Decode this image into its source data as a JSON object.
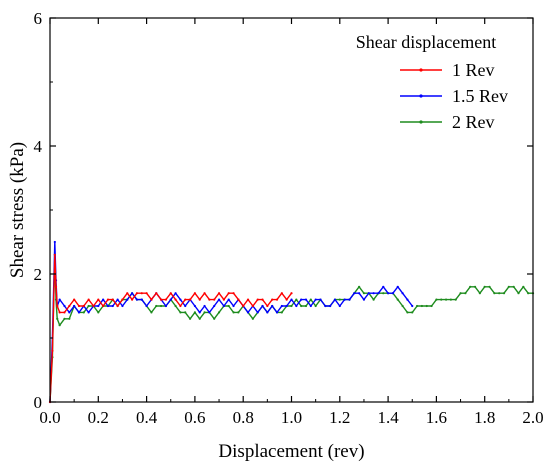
{
  "chart_data": {
    "type": "line",
    "title": "",
    "xlabel": "Displacement (rev)",
    "ylabel": "Shear stress (kPa)",
    "xlim": [
      0,
      2.0
    ],
    "ylim": [
      0,
      6
    ],
    "xticks": [
      "0.0",
      "0.2",
      "0.4",
      "0.6",
      "0.8",
      "1.0",
      "1.2",
      "1.4",
      "1.6",
      "1.8",
      "2.0"
    ],
    "yticks": [
      "0",
      "2",
      "4",
      "6"
    ],
    "grid": false,
    "legend": {
      "title": "Shear displacement",
      "position": "top-right"
    },
    "series": [
      {
        "name": "1 Rev",
        "color": "#ff0000",
        "x": [
          0.0,
          0.01,
          0.02,
          0.025,
          0.03,
          0.04,
          0.06,
          0.08,
          0.1,
          0.12,
          0.14,
          0.16,
          0.18,
          0.2,
          0.22,
          0.24,
          0.26,
          0.28,
          0.3,
          0.32,
          0.34,
          0.36,
          0.38,
          0.4,
          0.42,
          0.44,
          0.46,
          0.48,
          0.5,
          0.52,
          0.54,
          0.56,
          0.58,
          0.6,
          0.62,
          0.64,
          0.66,
          0.68,
          0.7,
          0.72,
          0.74,
          0.76,
          0.78,
          0.8,
          0.82,
          0.84,
          0.86,
          0.88,
          0.9,
          0.92,
          0.94,
          0.96,
          0.98,
          1.0
        ],
        "y": [
          0.0,
          0.8,
          2.3,
          1.8,
          1.5,
          1.4,
          1.4,
          1.5,
          1.6,
          1.5,
          1.5,
          1.6,
          1.5,
          1.6,
          1.5,
          1.6,
          1.6,
          1.5,
          1.6,
          1.7,
          1.6,
          1.7,
          1.7,
          1.7,
          1.6,
          1.7,
          1.6,
          1.6,
          1.7,
          1.6,
          1.5,
          1.6,
          1.6,
          1.7,
          1.6,
          1.7,
          1.6,
          1.6,
          1.7,
          1.6,
          1.7,
          1.7,
          1.6,
          1.5,
          1.6,
          1.5,
          1.6,
          1.6,
          1.5,
          1.6,
          1.6,
          1.7,
          1.6,
          1.7
        ]
      },
      {
        "name": "1.5 Rev",
        "color": "#0000ff",
        "x": [
          0.0,
          0.01,
          0.02,
          0.025,
          0.03,
          0.04,
          0.06,
          0.08,
          0.1,
          0.12,
          0.14,
          0.16,
          0.18,
          0.2,
          0.22,
          0.24,
          0.26,
          0.28,
          0.3,
          0.32,
          0.34,
          0.36,
          0.38,
          0.4,
          0.42,
          0.44,
          0.46,
          0.48,
          0.5,
          0.52,
          0.54,
          0.56,
          0.58,
          0.6,
          0.62,
          0.64,
          0.66,
          0.68,
          0.7,
          0.72,
          0.74,
          0.76,
          0.78,
          0.8,
          0.82,
          0.84,
          0.86,
          0.88,
          0.9,
          0.92,
          0.94,
          0.96,
          0.98,
          1.0,
          1.02,
          1.04,
          1.06,
          1.08,
          1.1,
          1.12,
          1.14,
          1.16,
          1.18,
          1.2,
          1.22,
          1.24,
          1.26,
          1.28,
          1.3,
          1.32,
          1.34,
          1.36,
          1.38,
          1.4,
          1.42,
          1.44,
          1.46,
          1.48,
          1.5
        ],
        "y": [
          0.0,
          1.0,
          2.5,
          1.9,
          1.5,
          1.6,
          1.5,
          1.4,
          1.5,
          1.4,
          1.5,
          1.4,
          1.5,
          1.5,
          1.6,
          1.5,
          1.5,
          1.6,
          1.5,
          1.6,
          1.7,
          1.6,
          1.6,
          1.5,
          1.6,
          1.7,
          1.6,
          1.5,
          1.6,
          1.7,
          1.6,
          1.5,
          1.6,
          1.5,
          1.4,
          1.5,
          1.4,
          1.5,
          1.6,
          1.5,
          1.6,
          1.5,
          1.6,
          1.5,
          1.4,
          1.5,
          1.4,
          1.5,
          1.4,
          1.5,
          1.4,
          1.5,
          1.5,
          1.6,
          1.5,
          1.6,
          1.6,
          1.5,
          1.6,
          1.6,
          1.5,
          1.5,
          1.6,
          1.5,
          1.6,
          1.6,
          1.7,
          1.7,
          1.6,
          1.7,
          1.7,
          1.7,
          1.8,
          1.7,
          1.7,
          1.8,
          1.7,
          1.6,
          1.5
        ]
      },
      {
        "name": "2 Rev",
        "color": "#1e8c1e",
        "x": [
          0.0,
          0.01,
          0.02,
          0.025,
          0.03,
          0.04,
          0.06,
          0.08,
          0.1,
          0.12,
          0.14,
          0.16,
          0.18,
          0.2,
          0.22,
          0.24,
          0.26,
          0.28,
          0.3,
          0.32,
          0.34,
          0.36,
          0.38,
          0.4,
          0.42,
          0.44,
          0.46,
          0.48,
          0.5,
          0.52,
          0.54,
          0.56,
          0.58,
          0.6,
          0.62,
          0.64,
          0.66,
          0.68,
          0.7,
          0.72,
          0.74,
          0.76,
          0.78,
          0.8,
          0.82,
          0.84,
          0.86,
          0.88,
          0.9,
          0.92,
          0.94,
          0.96,
          0.98,
          1.0,
          1.02,
          1.04,
          1.06,
          1.08,
          1.1,
          1.12,
          1.14,
          1.16,
          1.18,
          1.2,
          1.22,
          1.24,
          1.26,
          1.28,
          1.3,
          1.32,
          1.34,
          1.36,
          1.38,
          1.4,
          1.42,
          1.44,
          1.46,
          1.48,
          1.5,
          1.52,
          1.54,
          1.56,
          1.58,
          1.6,
          1.62,
          1.64,
          1.66,
          1.68,
          1.7,
          1.72,
          1.74,
          1.76,
          1.78,
          1.8,
          1.82,
          1.84,
          1.86,
          1.88,
          1.9,
          1.92,
          1.94,
          1.96,
          1.98,
          2.0
        ],
        "y": [
          0.0,
          0.7,
          2.3,
          1.6,
          1.3,
          1.2,
          1.3,
          1.3,
          1.5,
          1.4,
          1.4,
          1.5,
          1.5,
          1.4,
          1.5,
          1.5,
          1.6,
          1.5,
          1.6,
          1.6,
          1.7,
          1.6,
          1.6,
          1.5,
          1.4,
          1.5,
          1.5,
          1.5,
          1.6,
          1.5,
          1.4,
          1.4,
          1.3,
          1.4,
          1.3,
          1.4,
          1.4,
          1.3,
          1.4,
          1.5,
          1.5,
          1.4,
          1.4,
          1.5,
          1.4,
          1.3,
          1.4,
          1.5,
          1.4,
          1.5,
          1.4,
          1.4,
          1.5,
          1.5,
          1.6,
          1.5,
          1.5,
          1.6,
          1.5,
          1.6,
          1.5,
          1.5,
          1.6,
          1.6,
          1.6,
          1.6,
          1.7,
          1.8,
          1.7,
          1.7,
          1.6,
          1.7,
          1.7,
          1.7,
          1.7,
          1.6,
          1.5,
          1.4,
          1.4,
          1.5,
          1.5,
          1.5,
          1.5,
          1.6,
          1.6,
          1.6,
          1.6,
          1.6,
          1.7,
          1.7,
          1.8,
          1.8,
          1.7,
          1.8,
          1.8,
          1.7,
          1.7,
          1.7,
          1.8,
          1.8,
          1.7,
          1.8,
          1.7,
          1.7
        ]
      }
    ]
  }
}
